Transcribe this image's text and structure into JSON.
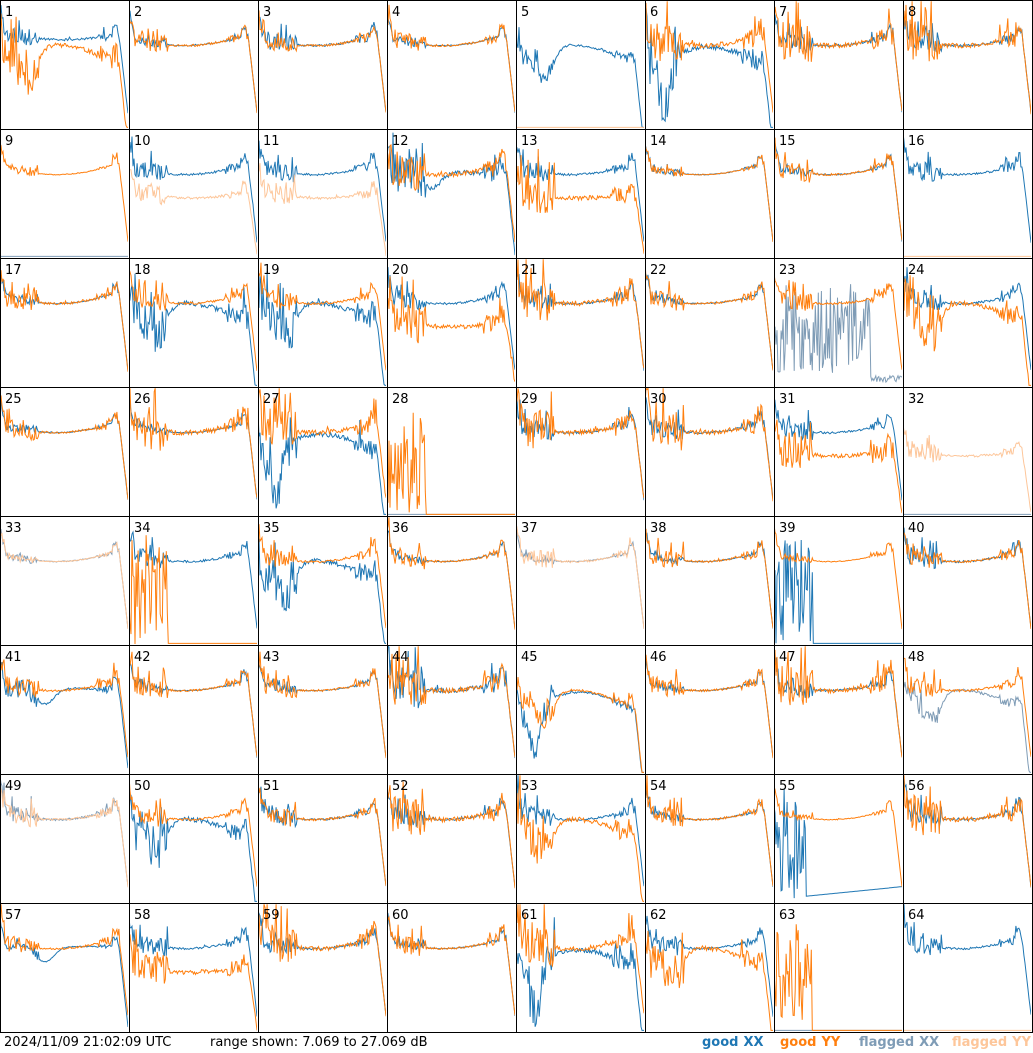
{
  "footer": {
    "timestamp": "2024/11/09 21:02:09 UTC",
    "range_label": "range shown: 7.069 to 27.069 dB"
  },
  "legend": [
    {
      "key": "good_xx",
      "word": "good",
      "pol": "XX",
      "color": "#1f77b4"
    },
    {
      "key": "good_yy",
      "word": "good",
      "pol": "YY",
      "color": "#ff7f0e"
    },
    {
      "key": "flagged_xx",
      "word": "flagged",
      "pol": "XX",
      "color": "#7f9cb6"
    },
    {
      "key": "flagged_yy",
      "word": "flagged",
      "pol": "YY",
      "color": "#fdc69a"
    }
  ],
  "chart_data": {
    "type": "line",
    "layout": "small-multiples 8x8",
    "ylim": [
      7.069,
      27.069
    ],
    "yunit": "dB",
    "panels": [
      {
        "n": "1",
        "xx": "good",
        "yy": "good",
        "xx_shape": "hump",
        "yy_shape": "dip",
        "xx_spikes": "mid",
        "yy_spikes": "high"
      },
      {
        "n": "2",
        "xx": "good",
        "yy": "good",
        "xx_shape": "flat",
        "yy_shape": "flat",
        "xx_spikes": "low",
        "yy_spikes": "mid"
      },
      {
        "n": "3",
        "xx": "good",
        "yy": "good",
        "xx_shape": "flat",
        "yy_shape": "flat",
        "xx_spikes": "mid",
        "yy_spikes": "mid"
      },
      {
        "n": "4",
        "xx": "good",
        "yy": "good",
        "xx_shape": "flat",
        "yy_shape": "flat",
        "xx_spikes": "low",
        "yy_spikes": "mid"
      },
      {
        "n": "5",
        "xx": "good",
        "yy": "flagged",
        "xx_shape": "dip",
        "yy_shape": "dead",
        "xx_spikes": "mid",
        "yy_spikes": "none"
      },
      {
        "n": "6",
        "xx": "good",
        "yy": "good",
        "xx_shape": "deepdip",
        "yy_shape": "flat",
        "xx_spikes": "high",
        "yy_spikes": "high"
      },
      {
        "n": "7",
        "xx": "good",
        "yy": "good",
        "xx_shape": "flat",
        "yy_shape": "flat",
        "xx_spikes": "mid",
        "yy_spikes": "high"
      },
      {
        "n": "8",
        "xx": "good",
        "yy": "good",
        "xx_shape": "flat",
        "yy_shape": "flat",
        "xx_spikes": "mid",
        "yy_spikes": "high"
      },
      {
        "n": "9",
        "xx": "flagged",
        "yy": "good",
        "xx_shape": "dead",
        "yy_shape": "flat",
        "xx_spikes": "none",
        "yy_spikes": "low"
      },
      {
        "n": "10",
        "xx": "good",
        "yy": "flagged",
        "xx_shape": "flat",
        "yy_shape": "low",
        "xx_spikes": "mid",
        "yy_spikes": "mid"
      },
      {
        "n": "11",
        "xx": "good",
        "yy": "flagged",
        "xx_shape": "flat",
        "yy_shape": "low",
        "xx_spikes": "mid",
        "yy_spikes": "mid"
      },
      {
        "n": "12",
        "xx": "good",
        "yy": "good",
        "xx_shape": "lowhump",
        "yy_shape": "flat",
        "xx_spikes": "high",
        "yy_spikes": "high"
      },
      {
        "n": "13",
        "xx": "good",
        "yy": "good",
        "xx_shape": "flat",
        "yy_shape": "low",
        "xx_spikes": "mid",
        "yy_spikes": "high"
      },
      {
        "n": "14",
        "xx": "good",
        "yy": "good",
        "xx_shape": "flat",
        "yy_shape": "flat",
        "xx_spikes": "low",
        "yy_spikes": "low"
      },
      {
        "n": "15",
        "xx": "good",
        "yy": "good",
        "xx_shape": "flat",
        "yy_shape": "flat",
        "xx_spikes": "low",
        "yy_spikes": "mid"
      },
      {
        "n": "16",
        "xx": "good",
        "yy": "flagged",
        "xx_shape": "flat",
        "yy_shape": "dead",
        "xx_spikes": "mid",
        "yy_spikes": "none"
      },
      {
        "n": "17",
        "xx": "good",
        "yy": "good",
        "xx_shape": "flat",
        "yy_shape": "flat",
        "xx_spikes": "low",
        "yy_spikes": "mid"
      },
      {
        "n": "18",
        "xx": "good",
        "yy": "good",
        "xx_shape": "dip",
        "yy_shape": "flat",
        "xx_spikes": "high",
        "yy_spikes": "mid"
      },
      {
        "n": "19",
        "xx": "good",
        "yy": "good",
        "xx_shape": "dip",
        "yy_shape": "flat",
        "xx_spikes": "high",
        "yy_spikes": "mid"
      },
      {
        "n": "20",
        "xx": "good",
        "yy": "good",
        "xx_shape": "flat",
        "yy_shape": "low",
        "xx_spikes": "mid",
        "yy_spikes": "high"
      },
      {
        "n": "21",
        "xx": "good",
        "yy": "good",
        "xx_shape": "flat",
        "yy_shape": "flat",
        "xx_spikes": "mid",
        "yy_spikes": "high"
      },
      {
        "n": "22",
        "xx": "good",
        "yy": "good",
        "xx_shape": "flat",
        "yy_shape": "flat",
        "xx_spikes": "low",
        "yy_spikes": "mid"
      },
      {
        "n": "23",
        "xx": "flagged",
        "yy": "good",
        "xx_shape": "noise",
        "yy_shape": "flat",
        "xx_spikes": "high",
        "yy_spikes": "mid"
      },
      {
        "n": "24",
        "xx": "good",
        "yy": "good",
        "xx_shape": "flat",
        "yy_shape": "dip",
        "xx_spikes": "mid",
        "yy_spikes": "high"
      },
      {
        "n": "25",
        "xx": "good",
        "yy": "good",
        "xx_shape": "flat",
        "yy_shape": "flat",
        "xx_spikes": "low",
        "yy_spikes": "mid"
      },
      {
        "n": "26",
        "xx": "good",
        "yy": "good",
        "xx_shape": "flat",
        "yy_shape": "flat",
        "xx_spikes": "low",
        "yy_spikes": "high"
      },
      {
        "n": "27",
        "xx": "good",
        "yy": "good",
        "xx_shape": "deepdip",
        "yy_shape": "flat",
        "xx_spikes": "high",
        "yy_spikes": "high"
      },
      {
        "n": "28",
        "xx": "flagged",
        "yy": "good",
        "xx_shape": "dead",
        "yy_shape": "dead",
        "xx_spikes": "none",
        "yy_spikes": "burst"
      },
      {
        "n": "29",
        "xx": "good",
        "yy": "good",
        "xx_shape": "flat",
        "yy_shape": "flat",
        "xx_spikes": "mid",
        "yy_spikes": "high"
      },
      {
        "n": "30",
        "xx": "good",
        "yy": "good",
        "xx_shape": "flat",
        "yy_shape": "flat",
        "xx_spikes": "mid",
        "yy_spikes": "high"
      },
      {
        "n": "31",
        "xx": "good",
        "yy": "good",
        "xx_shape": "flat",
        "yy_shape": "low",
        "xx_spikes": "mid",
        "yy_spikes": "high"
      },
      {
        "n": "32",
        "xx": "flagged",
        "yy": "flagged",
        "xx_shape": "dead",
        "yy_shape": "low",
        "xx_spikes": "none",
        "yy_spikes": "mid"
      },
      {
        "n": "33",
        "xx": "flagged",
        "yy": "flagged",
        "xx_shape": "flat",
        "yy_shape": "flat",
        "xx_spikes": "low",
        "yy_spikes": "low"
      },
      {
        "n": "34",
        "xx": "good",
        "yy": "good",
        "xx_shape": "flat",
        "yy_shape": "dead",
        "xx_spikes": "mid",
        "yy_spikes": "burst"
      },
      {
        "n": "35",
        "xx": "good",
        "yy": "good",
        "xx_shape": "dip",
        "yy_shape": "flat",
        "xx_spikes": "high",
        "yy_spikes": "mid"
      },
      {
        "n": "36",
        "xx": "good",
        "yy": "good",
        "xx_shape": "flat",
        "yy_shape": "flat",
        "xx_spikes": "low",
        "yy_spikes": "mid"
      },
      {
        "n": "37",
        "xx": "flagged",
        "yy": "flagged",
        "xx_shape": "flat",
        "yy_shape": "flat",
        "xx_spikes": "low",
        "yy_spikes": "mid"
      },
      {
        "n": "38",
        "xx": "good",
        "yy": "good",
        "xx_shape": "flat",
        "yy_shape": "flat",
        "xx_spikes": "low",
        "yy_spikes": "mid"
      },
      {
        "n": "39",
        "xx": "good",
        "yy": "good",
        "xx_shape": "dead",
        "yy_shape": "flat",
        "xx_spikes": "burst",
        "yy_spikes": "low"
      },
      {
        "n": "40",
        "xx": "good",
        "yy": "good",
        "xx_shape": "flat",
        "yy_shape": "flat",
        "xx_spikes": "mid",
        "yy_spikes": "mid"
      },
      {
        "n": "41",
        "xx": "good",
        "yy": "good",
        "xx_shape": "lowhump",
        "yy_shape": "flat",
        "xx_spikes": "mid",
        "yy_spikes": "mid"
      },
      {
        "n": "42",
        "xx": "good",
        "yy": "good",
        "xx_shape": "flat",
        "yy_shape": "flat",
        "xx_spikes": "low",
        "yy_spikes": "mid"
      },
      {
        "n": "43",
        "xx": "good",
        "yy": "good",
        "xx_shape": "flat",
        "yy_shape": "flat",
        "xx_spikes": "low",
        "yy_spikes": "mid"
      },
      {
        "n": "44",
        "xx": "good",
        "yy": "good",
        "xx_shape": "flat",
        "yy_shape": "flat",
        "xx_spikes": "high",
        "yy_spikes": "high"
      },
      {
        "n": "45",
        "xx": "good",
        "yy": "good",
        "xx_shape": "deepdip",
        "yy_shape": "dip",
        "xx_spikes": "mid",
        "yy_spikes": "mid"
      },
      {
        "n": "46",
        "xx": "good",
        "yy": "good",
        "xx_shape": "flat",
        "yy_shape": "flat",
        "xx_spikes": "low",
        "yy_spikes": "mid"
      },
      {
        "n": "47",
        "xx": "good",
        "yy": "good",
        "xx_shape": "flat",
        "yy_shape": "flat",
        "xx_spikes": "mid",
        "yy_spikes": "high"
      },
      {
        "n": "48",
        "xx": "flagged",
        "yy": "good",
        "xx_shape": "dip",
        "yy_shape": "flat",
        "xx_spikes": "mid",
        "yy_spikes": "mid"
      },
      {
        "n": "49",
        "xx": "flagged",
        "yy": "flagged",
        "xx_shape": "flat",
        "yy_shape": "flat",
        "xx_spikes": "mid",
        "yy_spikes": "mid"
      },
      {
        "n": "50",
        "xx": "good",
        "yy": "good",
        "xx_shape": "dip",
        "yy_shape": "flat",
        "xx_spikes": "high",
        "yy_spikes": "mid"
      },
      {
        "n": "51",
        "xx": "good",
        "yy": "good",
        "xx_shape": "flat",
        "yy_shape": "flat",
        "xx_spikes": "mid",
        "yy_spikes": "mid"
      },
      {
        "n": "52",
        "xx": "good",
        "yy": "good",
        "xx_shape": "flat",
        "yy_shape": "flat",
        "xx_spikes": "mid",
        "yy_spikes": "high"
      },
      {
        "n": "53",
        "xx": "good",
        "yy": "good",
        "xx_shape": "flat",
        "yy_shape": "dip",
        "xx_spikes": "mid",
        "yy_spikes": "high"
      },
      {
        "n": "54",
        "xx": "good",
        "yy": "good",
        "xx_shape": "flat",
        "yy_shape": "flat",
        "xx_spikes": "low",
        "yy_spikes": "mid"
      },
      {
        "n": "55",
        "xx": "good",
        "yy": "good",
        "xx_shape": "noise",
        "yy_shape": "flat",
        "xx_spikes": "burst",
        "yy_spikes": "low"
      },
      {
        "n": "56",
        "xx": "good",
        "yy": "good",
        "xx_shape": "flat",
        "yy_shape": "flat",
        "xx_spikes": "mid",
        "yy_spikes": "high"
      },
      {
        "n": "57",
        "xx": "good",
        "yy": "good",
        "xx_shape": "lowhump",
        "yy_shape": "flat",
        "xx_spikes": "low",
        "yy_spikes": "mid"
      },
      {
        "n": "58",
        "xx": "good",
        "yy": "good",
        "xx_shape": "flat",
        "yy_shape": "low",
        "xx_spikes": "mid",
        "yy_spikes": "high"
      },
      {
        "n": "59",
        "xx": "good",
        "yy": "good",
        "xx_shape": "flat",
        "yy_shape": "flat",
        "xx_spikes": "mid",
        "yy_spikes": "high"
      },
      {
        "n": "60",
        "xx": "good",
        "yy": "good",
        "xx_shape": "flat",
        "yy_shape": "flat",
        "xx_spikes": "low",
        "yy_spikes": "mid"
      },
      {
        "n": "61",
        "xx": "good",
        "yy": "good",
        "xx_shape": "deepdip",
        "yy_shape": "flat",
        "xx_spikes": "high",
        "yy_spikes": "high"
      },
      {
        "n": "62",
        "xx": "good",
        "yy": "good",
        "xx_shape": "flat",
        "yy_shape": "dip",
        "xx_spikes": "mid",
        "yy_spikes": "high"
      },
      {
        "n": "63",
        "xx": "flagged",
        "yy": "good",
        "xx_shape": "dead",
        "yy_shape": "dead",
        "xx_spikes": "none",
        "yy_spikes": "burst"
      },
      {
        "n": "64",
        "xx": "good",
        "yy": "flagged",
        "xx_shape": "flat",
        "yy_shape": "dead",
        "xx_spikes": "mid",
        "yy_spikes": "none"
      }
    ]
  }
}
